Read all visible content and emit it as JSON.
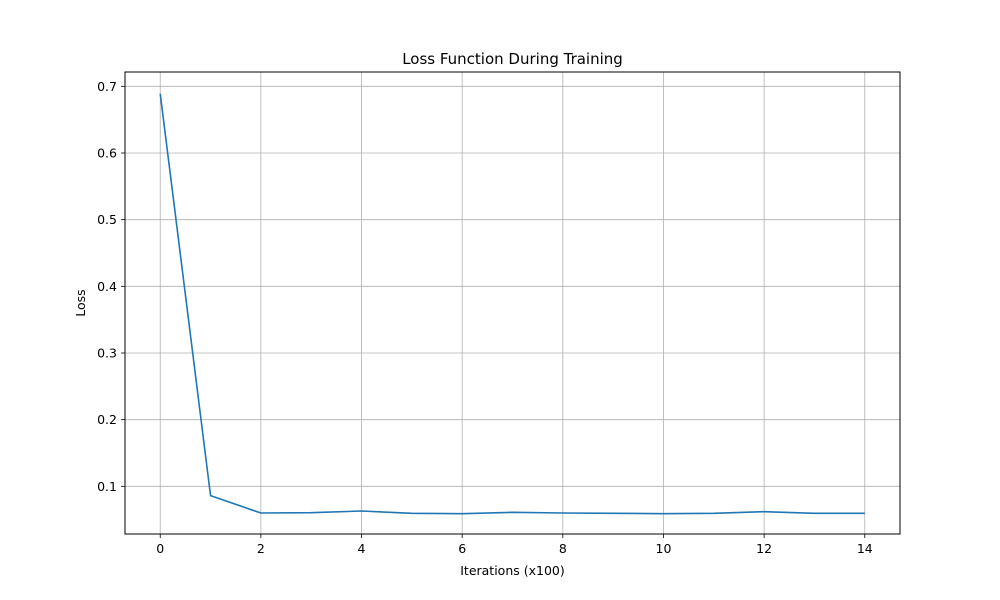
{
  "chart_data": {
    "type": "line",
    "title": "Loss Function During Training",
    "xlabel": "Iterations (x100)",
    "ylabel": "Loss",
    "xlim": [
      -0.7,
      14.7
    ],
    "ylim": [
      0.0285,
      0.7215
    ],
    "xticks": [
      0,
      2,
      4,
      6,
      8,
      10,
      12,
      14
    ],
    "xtick_labels": [
      "0",
      "2",
      "4",
      "6",
      "8",
      "10",
      "12",
      "14"
    ],
    "yticks": [
      0.1,
      0.2,
      0.3,
      0.4,
      0.5,
      0.6,
      0.7
    ],
    "ytick_labels": [
      "0.1",
      "0.2",
      "0.3",
      "0.4",
      "0.5",
      "0.6",
      "0.7"
    ],
    "grid": true,
    "legend": false,
    "line_color": "#1f77b4",
    "series": [
      {
        "x": [
          0,
          1,
          2,
          3,
          4,
          5,
          6,
          7,
          8,
          9,
          10,
          11,
          12,
          13,
          14
        ],
        "values": [
          0.689,
          0.086,
          0.06,
          0.0605,
          0.063,
          0.0595,
          0.059,
          0.061,
          0.06,
          0.0595,
          0.059,
          0.0595,
          0.062,
          0.0595,
          0.0595
        ]
      }
    ]
  }
}
